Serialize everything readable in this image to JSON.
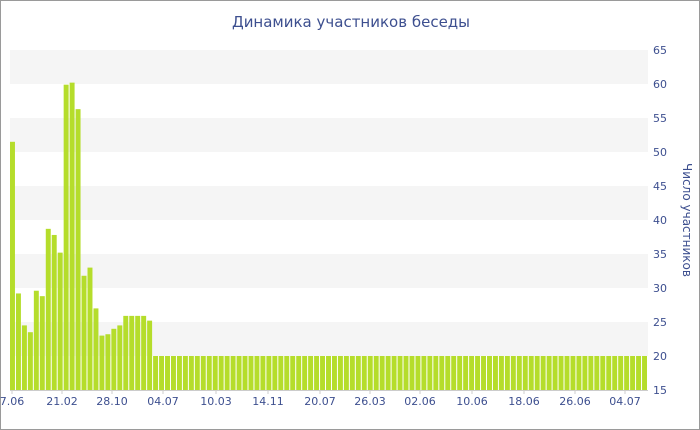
{
  "chart_data": {
    "type": "bar",
    "title": "Динамика участников беседы",
    "ylabel": "Число участников",
    "xlabel": "",
    "ylim": [
      15,
      65
    ],
    "yticks": [
      15,
      20,
      25,
      30,
      35,
      40,
      45,
      50,
      55,
      60,
      65
    ],
    "y_axis_side": "right",
    "grid": "alternating horizontal bands",
    "x_tick_labels": [
      "7.06",
      "21.02",
      "28.10",
      "04.07",
      "10.03",
      "14.11",
      "20.07",
      "26.03",
      "02.06",
      "10.06",
      "18.06",
      "26.06",
      "04.07"
    ],
    "values": [
      51.5,
      29.2,
      24.5,
      23.5,
      29.6,
      28.8,
      38.7,
      37.8,
      35.2,
      59.9,
      60.2,
      56.3,
      31.8,
      33,
      27,
      23,
      23.2,
      24,
      24.5,
      25.9,
      25.9,
      25.9,
      25.9,
      25.2,
      20,
      20,
      20,
      20,
      20,
      20,
      20,
      20,
      20,
      20,
      20,
      20,
      20,
      20,
      20,
      20,
      20,
      20,
      20,
      20,
      20,
      20,
      20,
      20,
      20,
      20,
      20,
      20,
      20,
      20,
      20,
      20,
      20,
      20,
      20,
      20,
      20,
      20,
      20,
      20,
      20,
      20,
      20,
      20,
      20,
      20,
      20,
      20,
      20,
      20,
      20,
      20,
      20,
      20,
      20,
      20,
      20,
      20,
      20,
      20,
      20,
      20,
      20,
      20,
      20,
      20,
      20,
      20,
      20,
      20,
      20,
      20,
      20,
      20,
      20,
      20,
      20,
      20,
      20,
      20,
      20,
      20,
      20
    ],
    "colors": {
      "bar": "#b5dd2b",
      "band": "#f5f5f5",
      "text": "#3d4f8f",
      "axis": "#cccccc"
    }
  }
}
